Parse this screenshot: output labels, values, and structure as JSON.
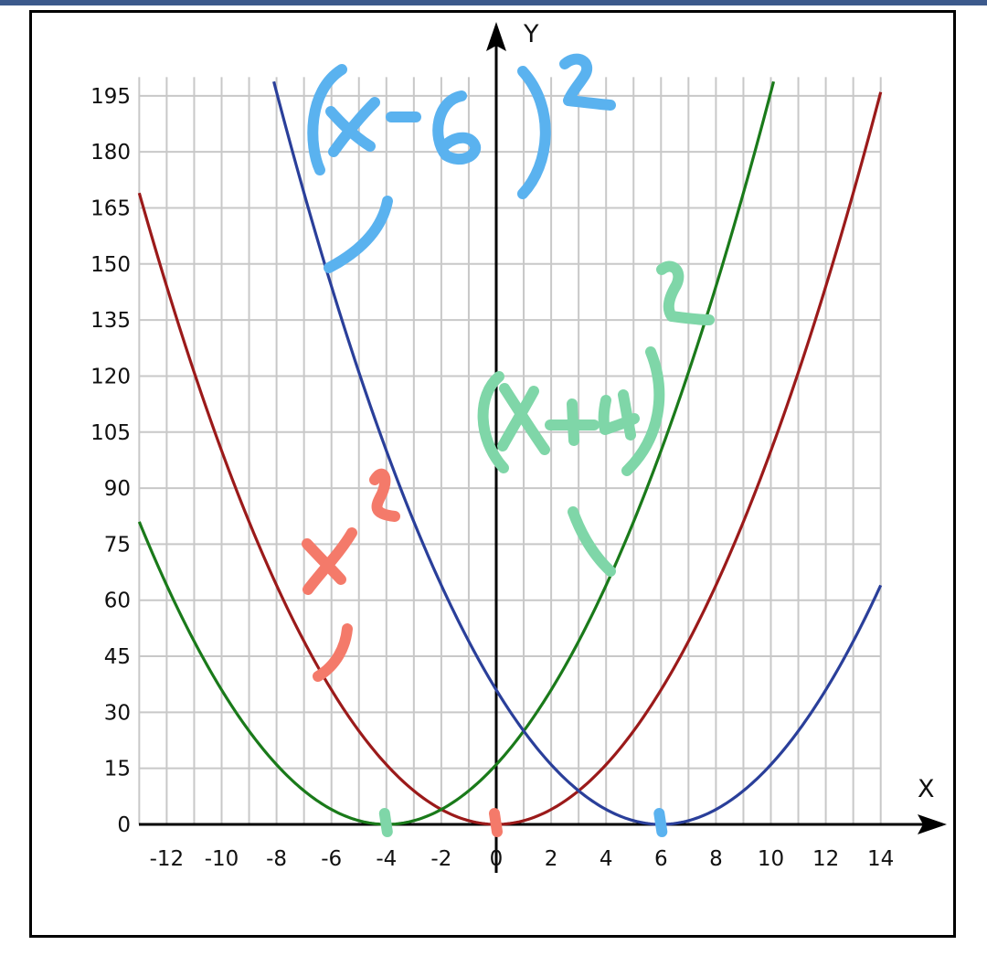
{
  "chart_data": {
    "type": "line",
    "xlabel": "X",
    "ylabel": "Y",
    "xlim": [
      -13,
      15
    ],
    "ylim": [
      0,
      200
    ],
    "x_ticks": [
      -12,
      -10,
      -8,
      -6,
      -4,
      -2,
      0,
      2,
      4,
      6,
      8,
      10,
      12,
      14
    ],
    "x_tick_labels": [
      "-12",
      "-10",
      "-8",
      "-6",
      "-4",
      "-2",
      "0",
      "2",
      "4",
      "6",
      "8",
      "10",
      "12",
      "14"
    ],
    "y_ticks": [
      0,
      15,
      30,
      45,
      60,
      75,
      90,
      105,
      120,
      135,
      150,
      165,
      180,
      195
    ],
    "y_tick_labels": [
      "0",
      "15",
      "30",
      "45",
      "60",
      "75",
      "90",
      "105",
      "120",
      "135",
      "150",
      "165",
      "180",
      "195"
    ],
    "grid": true,
    "series": [
      {
        "color": "#9b1a1a",
        "function": "x^2",
        "vertex": [
          0,
          0
        ],
        "x_range": [
          -13,
          14
        ]
      },
      {
        "color": "#1a7a1a",
        "function": "(x+4)^2",
        "vertex": [
          -4,
          0
        ],
        "x_range": [
          -13,
          10.1
        ]
      },
      {
        "color": "#2a3f9a",
        "function": "(x-6)^2",
        "vertex": [
          6,
          0
        ],
        "x_range": [
          -8.1,
          14
        ]
      }
    ],
    "annotations": [
      {
        "text": "x²",
        "color": "#f47a6a",
        "points_to": [
          -6.3,
          40
        ]
      },
      {
        "text": "(x+4)²",
        "color": "#7fd6a8",
        "points_to": [
          4.2,
          68
        ]
      },
      {
        "text": "(x-6)²",
        "color": "#5ab2ef",
        "points_to": [
          -6,
          150
        ]
      }
    ],
    "markers": [
      {
        "x": -4,
        "y": 0,
        "color": "#7fd6a8"
      },
      {
        "x": 0,
        "y": 0,
        "color": "#f47a6a"
      },
      {
        "x": 6,
        "y": 0,
        "color": "#5ab2ef"
      }
    ]
  }
}
